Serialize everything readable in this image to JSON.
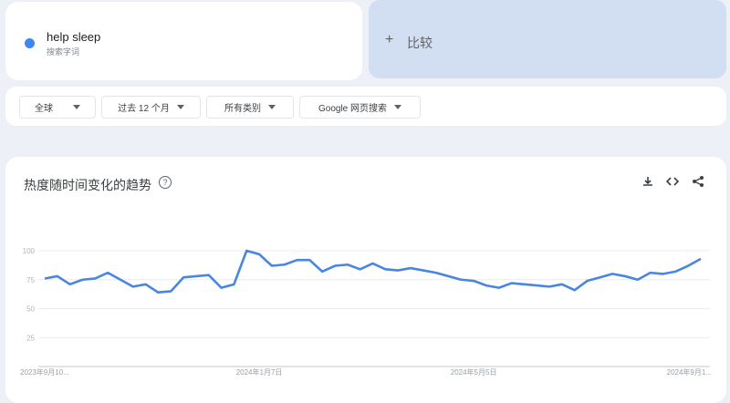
{
  "search_term": {
    "name": "help sleep",
    "type": "搜索字词",
    "color": "#4285f4"
  },
  "compare": {
    "icon": "plus-icon",
    "plus": "+",
    "label": "比较"
  },
  "filters": [
    {
      "label": "全球"
    },
    {
      "label": "过去 12 个月"
    },
    {
      "label": "所有类别"
    },
    {
      "label": "Google 网页搜索"
    }
  ],
  "chart_panel": {
    "title": "热度随时间变化的趋势",
    "help": "?",
    "tools": {
      "download": "download-icon",
      "embed": "embed-code-icon",
      "share": "share-icon"
    }
  },
  "chart_data": {
    "type": "line",
    "ylim": [
      0,
      100
    ],
    "yticks": [
      "100",
      "75",
      "50",
      "25"
    ],
    "ytick_values": [
      100,
      75,
      50,
      25
    ],
    "xtick_labels": [
      "2023年9月10...",
      "2024年1月7日",
      "2024年5月5日",
      "2024年9月1..."
    ],
    "xtick_indices": [
      0,
      17,
      34,
      52
    ],
    "grid": true,
    "line_color": "#4a86e0",
    "series": [
      {
        "values": [
          76,
          78,
          71,
          75,
          76,
          81,
          75,
          69,
          71,
          64,
          65,
          77,
          78,
          79,
          68,
          71,
          100,
          97,
          87,
          88,
          92,
          92,
          82,
          87,
          88,
          84,
          89,
          84,
          83,
          85,
          83,
          81,
          78,
          75,
          74,
          70,
          68,
          72,
          71,
          70,
          69,
          71,
          66,
          74,
          77,
          80,
          78,
          75,
          81,
          80,
          82,
          87,
          93
        ]
      }
    ]
  }
}
